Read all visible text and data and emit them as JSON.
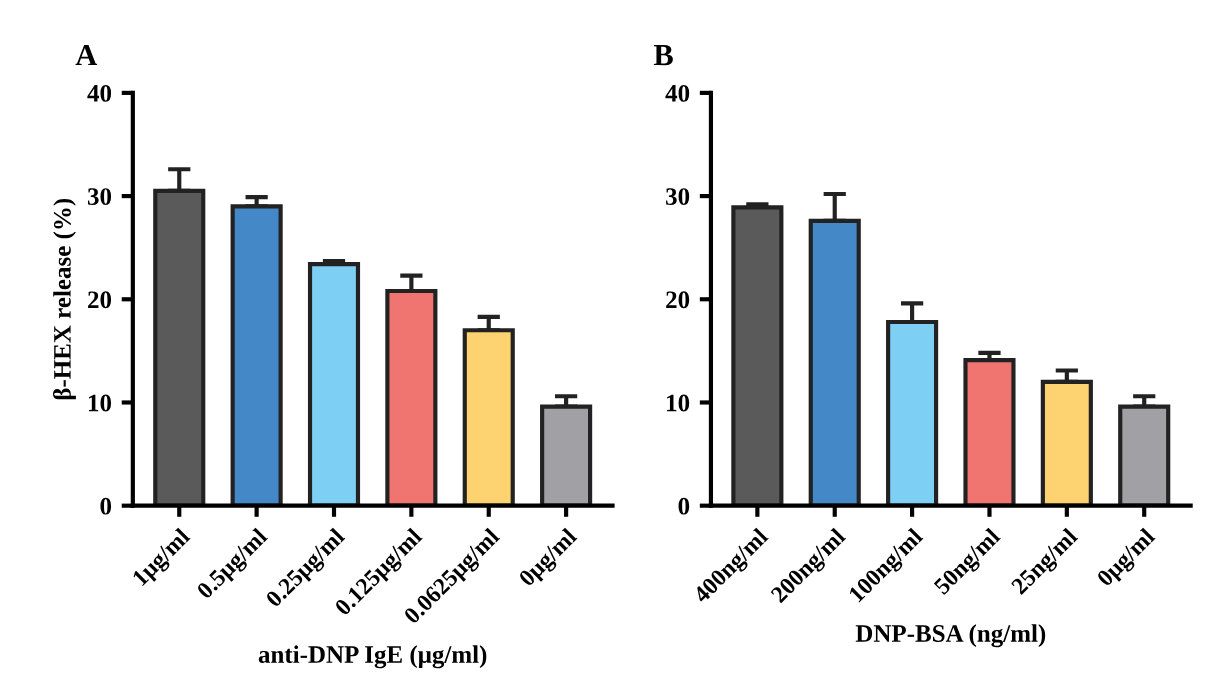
{
  "chart_data": [
    {
      "type": "bar",
      "title": "A",
      "ylabel": "β-HEX release (%)",
      "xlabel": "anti-DNP IgE (μg/ml)",
      "categories": [
        "1μg/ml",
        "0.5μg/ml",
        "0.25μg/ml",
        "0.125μg/ml",
        "0.0625μg/ml",
        "0μg/ml"
      ],
      "values": [
        30.5,
        29.0,
        23.4,
        20.8,
        17.0,
        9.6
      ],
      "errors": [
        [
          30.5,
          32.6
        ],
        [
          29.0,
          29.9
        ],
        [
          23.4,
          23.7
        ],
        [
          20.8,
          22.3
        ],
        [
          17.0,
          18.3
        ],
        [
          9.6,
          10.6
        ]
      ],
      "colors": [
        "#5a5a5a",
        "#4488c8",
        "#7dcff3",
        "#f07470",
        "#fdd270",
        "#a0a0a5"
      ],
      "ylim": [
        0,
        40
      ],
      "yticks": [
        0,
        10,
        20,
        30,
        40
      ],
      "grid": false,
      "legend": false
    },
    {
      "type": "bar",
      "title": "B",
      "xlabel": "DNP-BSA (ng/ml)",
      "categories": [
        "400ng/ml",
        "200ng/ml",
        "100ng/ml",
        "50ng/ml",
        "25ng/ml",
        "0μg/ml"
      ],
      "values": [
        28.9,
        27.6,
        17.8,
        14.1,
        12.0,
        9.6
      ],
      "errors": [
        [
          28.9,
          29.2
        ],
        [
          27.6,
          30.2
        ],
        [
          17.8,
          19.6
        ],
        [
          14.1,
          14.8
        ],
        [
          12.0,
          13.1
        ],
        [
          9.6,
          10.6
        ]
      ],
      "colors": [
        "#5a5a5a",
        "#4488c8",
        "#7dcff3",
        "#f07470",
        "#fdd270",
        "#a0a0a5"
      ],
      "ylim": [
        0,
        40
      ],
      "yticks": [
        0,
        10,
        20,
        30,
        40
      ],
      "grid": false,
      "legend": false
    }
  ]
}
